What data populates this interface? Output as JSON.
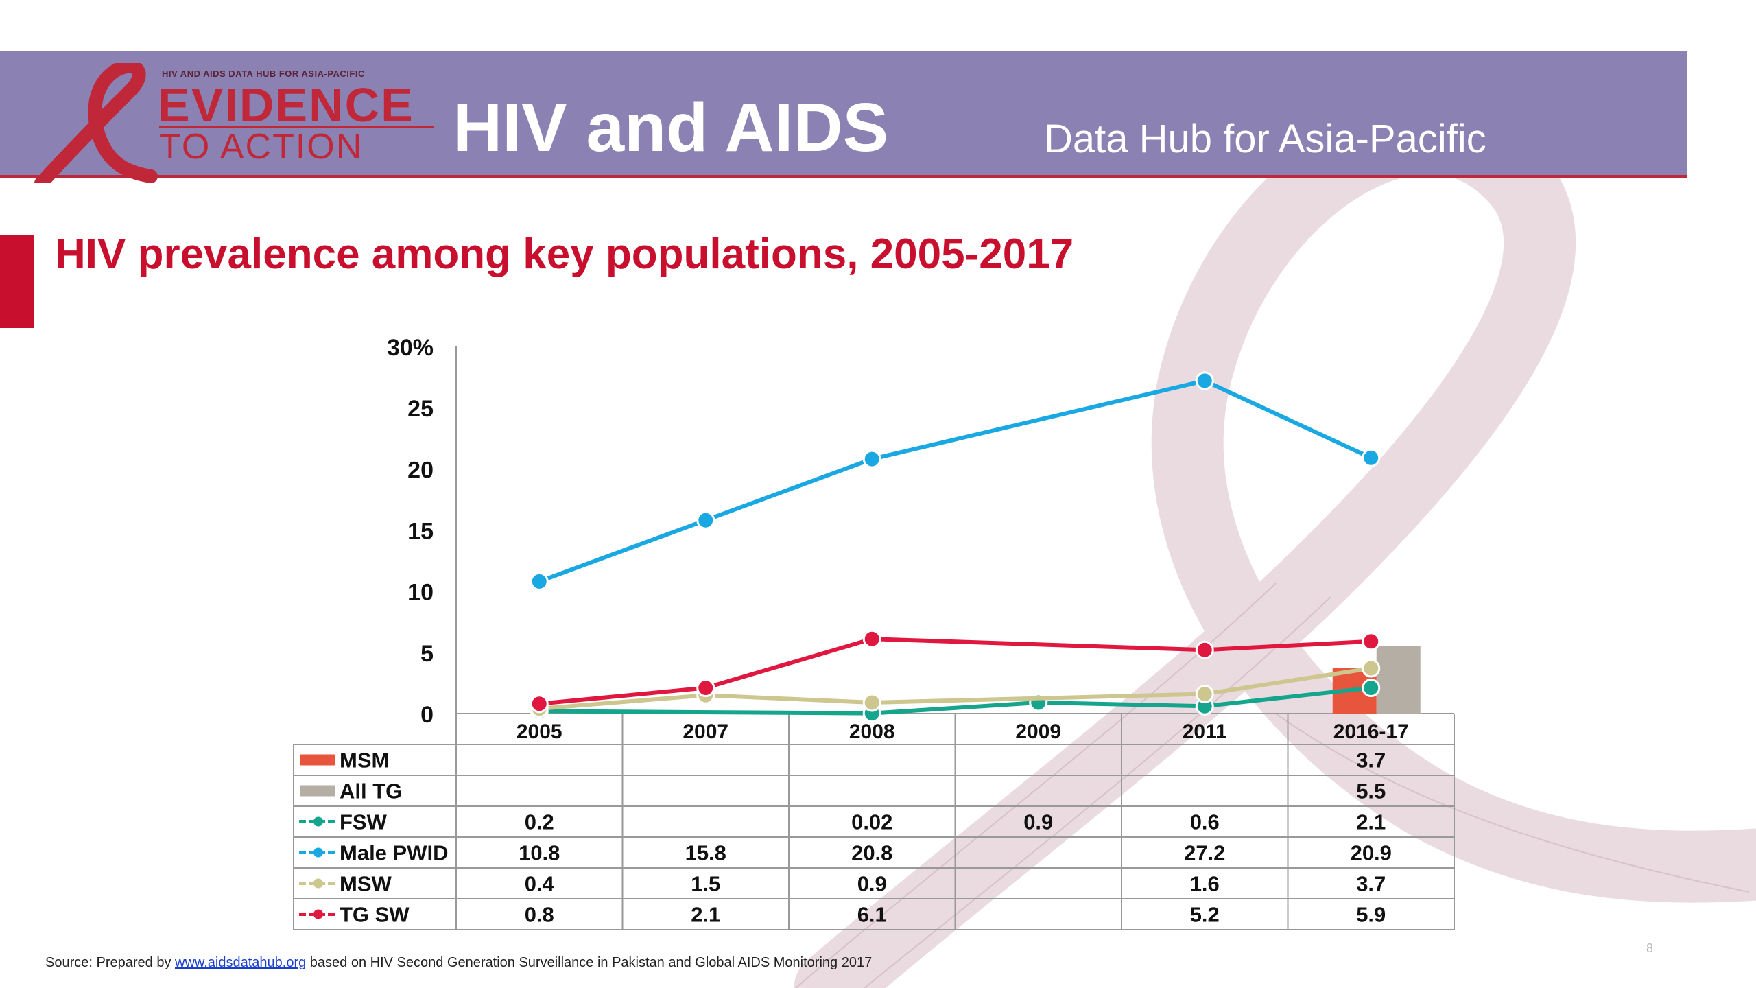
{
  "header": {
    "logo_tagline": "HIV AND AIDS DATA HUB FOR ASIA-PACIFIC",
    "logo_line1": "EVIDENCE",
    "logo_line2": "TO ACTION",
    "title": "HIV and AIDS",
    "subtitle": "Data Hub for Asia-Pacific",
    "bar_color": "#8b82b3",
    "accent_color": "#c8102e"
  },
  "slide": {
    "title": "HIV prevalence among key populations, 2005-2017",
    "page_number": "8"
  },
  "source": {
    "prefix": "Source: Prepared by",
    "link": "www.aidsdatahub.org",
    "suffix": "based on HIV Second Generation Surveillance in Pakistan and Global AIDS Monitoring 2017"
  },
  "chart_data": {
    "type": "line",
    "title": "HIV prevalence among key populations, 2005-2017",
    "categories": [
      "2005",
      "2007",
      "2008",
      "2009",
      "2011",
      "2016-17"
    ],
    "y_ticks": [
      "30%",
      "25",
      "20",
      "15",
      "10",
      "5",
      "0"
    ],
    "ylim": [
      0,
      30
    ],
    "grid": false,
    "legend": "data table below chart",
    "bar_series": [
      {
        "name": "MSM",
        "color": "#e8553d",
        "values": [
          null,
          null,
          null,
          null,
          null,
          3.7
        ]
      },
      {
        "name": "All TG",
        "color": "#b5aea4",
        "values": [
          null,
          null,
          null,
          null,
          null,
          5.5
        ]
      }
    ],
    "line_series": [
      {
        "name": "FSW",
        "color": "#15a58c",
        "values": [
          0.2,
          null,
          0.02,
          0.9,
          0.6,
          2.1
        ]
      },
      {
        "name": "Male PWID",
        "color": "#1aa8e2",
        "values": [
          10.8,
          15.8,
          20.8,
          null,
          27.2,
          20.9
        ]
      },
      {
        "name": "MSW",
        "color": "#cdc68f",
        "values": [
          0.4,
          1.5,
          0.9,
          null,
          1.6,
          3.7
        ]
      },
      {
        "name": "TG SW",
        "color": "#e0173f",
        "values": [
          0.8,
          2.1,
          6.1,
          null,
          5.2,
          5.9
        ]
      }
    ],
    "table_rows": [
      {
        "label": "MSM",
        "cells": [
          "",
          "",
          "",
          "",
          "",
          "3.7"
        ]
      },
      {
        "label": "All TG",
        "cells": [
          "",
          "",
          "",
          "",
          "",
          "5.5"
        ]
      },
      {
        "label": "FSW",
        "cells": [
          "0.2",
          "",
          "0.02",
          "0.9",
          "0.6",
          "2.1"
        ]
      },
      {
        "label": "Male PWID",
        "cells": [
          "10.8",
          "15.8",
          "20.8",
          "",
          "27.2",
          "20.9"
        ]
      },
      {
        "label": "MSW",
        "cells": [
          "0.4",
          "1.5",
          "0.9",
          "",
          "1.6",
          "3.7"
        ]
      },
      {
        "label": "TG SW",
        "cells": [
          "0.8",
          "2.1",
          "6.1",
          "",
          "5.2",
          "5.9"
        ]
      }
    ]
  }
}
